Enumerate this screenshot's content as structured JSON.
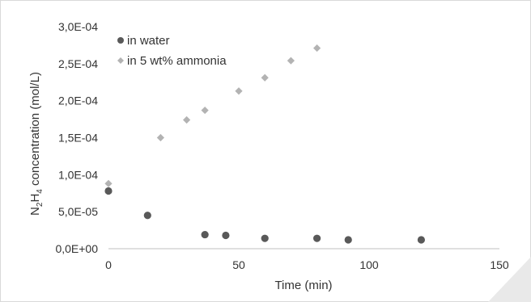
{
  "chart_data": {
    "type": "scatter",
    "title": "",
    "xlabel": "Time (min)",
    "ylabel_parts": {
      "main": "N",
      "sub1": "2",
      "mid": "H",
      "sub2": "4",
      "rest": " concentration (mol/L)"
    },
    "xlim": [
      0,
      150
    ],
    "ylim": [
      0,
      0.0003
    ],
    "x_ticks": [
      0,
      50,
      100,
      150
    ],
    "x_tick_labels": [
      "0",
      "50",
      "100",
      "150"
    ],
    "y_ticks": [
      0,
      5e-05,
      0.0001,
      0.00015,
      0.0002,
      0.00025,
      0.0003
    ],
    "y_tick_labels": [
      "0,0E+00",
      "5,0E-05",
      "1,0E-04",
      "1,5E-04",
      "2,0E-04",
      "2,5E-04",
      "3,0E-04"
    ],
    "grid": false,
    "legend_position": "top-left",
    "series": [
      {
        "name": "in water",
        "marker": "circle",
        "color": "#595959",
        "points": [
          [
            0,
            7.8e-05
          ],
          [
            15,
            4.5e-05
          ],
          [
            37,
            1.9e-05
          ],
          [
            45,
            1.8e-05
          ],
          [
            60,
            1.4e-05
          ],
          [
            80,
            1.4e-05
          ],
          [
            92,
            1.2e-05
          ],
          [
            120,
            1.2e-05
          ]
        ]
      },
      {
        "name": "in 5 wt% ammonia",
        "marker": "diamond",
        "color": "#b3b3b3",
        "points": [
          [
            0,
            8.8e-05
          ],
          [
            20,
            0.00015
          ],
          [
            30,
            0.000174
          ],
          [
            37,
            0.000187
          ],
          [
            50,
            0.000213
          ],
          [
            60,
            0.000231
          ],
          [
            70,
            0.000254
          ],
          [
            80,
            0.000271
          ]
        ]
      }
    ]
  }
}
